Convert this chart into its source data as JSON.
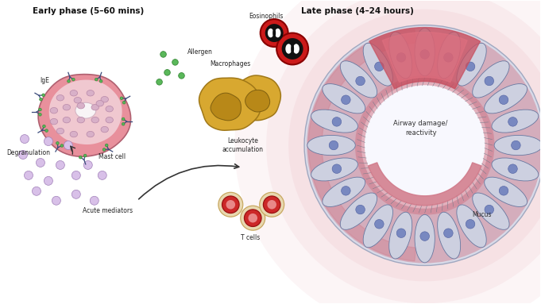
{
  "title_left": "Early phase (5–60 mins)",
  "title_right": "Late phase (4–24 hours)",
  "bg_color": "#ffffff",
  "label_mast_cell": "Mast cell",
  "label_ige": "IgE",
  "label_allergen": "Allergen",
  "label_degranulation": "Degranulation",
  "label_acute_mediators": "Acute mediators",
  "label_leukocyte": "Leukocyte\naccumulation",
  "label_macrophages": "Macrophages",
  "label_eosinophils": "Eosinophils",
  "label_t_cells": "T cells",
  "label_airway": "Airway damage/\nreactivity",
  "label_mucus": "Mucus",
  "mast_cell_color": "#e8909c",
  "mast_cell_light": "#f0c8d0",
  "granule_color": "#d8b0c8",
  "granule_border": "#b888a8",
  "ige_color": "#3a4a7a",
  "allergen_color": "#3a8a3a",
  "allergen_fill": "#5ab85a",
  "arrow_color": "#333333",
  "macrophage_color": "#d8a830",
  "macrophage_inner": "#b88818",
  "eosinophil_outer": "#cc1a1a",
  "eosinophil_black": "#111111",
  "eosinophil_white": "#ffffff",
  "t_cell_beige": "#e8d8b0",
  "t_cell_beige_border": "#c8a860",
  "t_cell_red": "#cc2828",
  "t_cell_pink": "#e88888",
  "airway_cell_fill": "#c8ccd8",
  "airway_cell_light": "#e0e4f0",
  "airway_lumen": "#f0f0f8",
  "airway_nucleus": "#5060a0",
  "mucus_pink": "#d07888",
  "pink_glow": "#f0c8d0",
  "cilia_color": "#707888",
  "cell_border": "#6878a0",
  "white": "#ffffff",
  "degraded_color": "#c8a8d8",
  "degraded_border": "#a080b8",
  "damage_color": "#c85060"
}
